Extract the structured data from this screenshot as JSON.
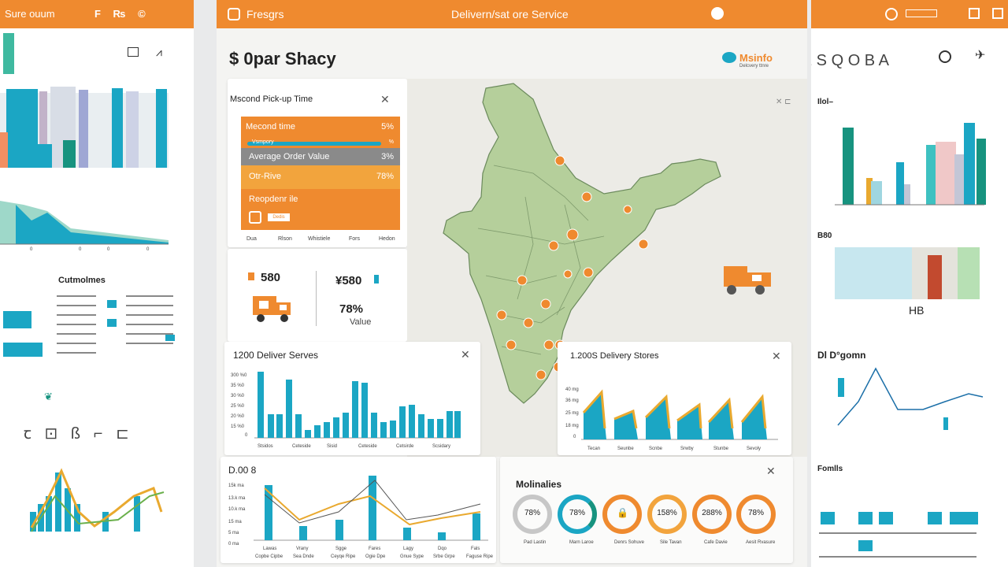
{
  "header": {
    "brand": "Fresgrs",
    "center_title": "Delivern/sat ore Service",
    "left_bar_title": "Sure ouum",
    "left_bar_icons": "F ₨ ©"
  },
  "page": {
    "title": "$ 0par Shacy",
    "brand_logo_text": "Msinfo",
    "brand_logo_sub": "Delcvery ttnre",
    "code": "1 S Q O B A"
  },
  "pickup_card": {
    "title": "Mscond Pick-up Time",
    "rows": [
      {
        "label": "Mecond time",
        "value": "5%"
      },
      {
        "label": "Vsmpory",
        "value": "%"
      },
      {
        "label": "Average Order Value",
        "value": "3%"
      },
      {
        "label": "Otr-Rive",
        "value": "78%"
      },
      {
        "label": "Reopdenr ile",
        "value": ""
      }
    ],
    "button_label": "Dedis",
    "axis": [
      "Dua",
      "Rlson",
      "Whistiele",
      "Fors",
      "Hedon"
    ]
  },
  "kpis": [
    {
      "value": "580"
    },
    {
      "value": "¥580"
    },
    {
      "value": "78%",
      "label": "Value"
    }
  ],
  "deliver_card": {
    "title": "1200 Deliver Serves",
    "yticks": [
      "300 %0",
      "35 %0",
      "30 %0",
      "25 %0",
      "20 %0",
      "15 %0",
      "0"
    ],
    "xticks": [
      "Stsidos",
      "Ceteside",
      "Sisid",
      "Ceteside",
      "Cetsirde",
      "Scsidary"
    ]
  },
  "stores_card": {
    "title": "1.200S Delivery Stores",
    "yticks": [
      "40 mg",
      "36 mg",
      "25 mg",
      "18 mg",
      "0"
    ],
    "xticks": [
      "Tecan",
      "Seunbe",
      "Scnbe",
      "Srwby",
      "Stunbe",
      "Sevoly"
    ]
  },
  "bottom_chart": {
    "title": "D.00 8",
    "yticks": [
      "15k ma",
      "13.k ma",
      "10.k ma",
      "15 ma",
      "5 ma",
      "0 ma"
    ],
    "xticks": [
      "Lawas",
      "Vrany",
      "Sgge",
      "Fares",
      "Lagy",
      "Dqo",
      "Fals"
    ],
    "xticks2": [
      "Copbe Cipbe",
      "Sea Dnde",
      "Ceyqe Ripe",
      "Ogie Dpe",
      "Gnue Sype",
      "Srbe Grpe",
      "Faguse Ripe"
    ]
  },
  "molinalies": {
    "title": "Molinalies",
    "items": [
      {
        "value": "78%",
        "label": "Pad Lastin"
      },
      {
        "value": "78%",
        "label": "Marn Laroe"
      },
      {
        "value": "",
        "label": "Denrs Sohuve"
      },
      {
        "value": "158%",
        "label": "Sile Tavan"
      },
      {
        "value": "288%",
        "label": "Cafe Davie"
      },
      {
        "value": "78%",
        "label": "Aesit Rvasure"
      }
    ]
  },
  "left_panel": {
    "section_title": "Cutmolmes",
    "ticks": [
      "0",
      "0",
      "0",
      "0"
    ]
  },
  "right_panel": {
    "title1": "Ilol–",
    "title2": "B80",
    "title3": "Dl D°gomn",
    "title4": "Fomlls",
    "misc": "HB"
  },
  "colors": {
    "orange": "#ef8a2f",
    "teal": "#1ba6c4",
    "green": "#17937f",
    "map": "#b5cf9b"
  }
}
